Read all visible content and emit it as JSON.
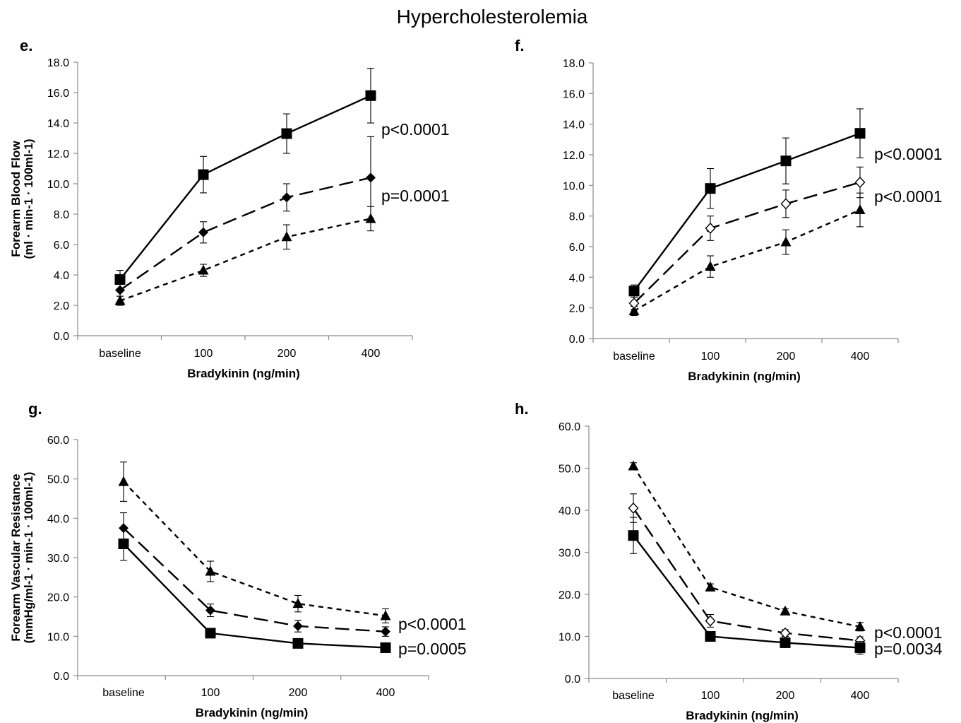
{
  "figure_title": "Hypercholesterolemia",
  "chart_data": [
    {
      "panel": "e.",
      "type": "line",
      "xlabel": "Bradykinin (ng/min)",
      "ylabel_lines": [
        "Forearm Blood Flow",
        "(ml · min-1 · 100ml-1)"
      ],
      "categories": [
        "baseline",
        "100",
        "200",
        "400"
      ],
      "ylim": [
        0,
        18
      ],
      "yticks": [
        "0.0",
        "2.0",
        "4.0",
        "6.0",
        "8.0",
        "10.0",
        "12.0",
        "14.0",
        "16.0",
        "18.0"
      ],
      "series": [
        {
          "marker": "square",
          "dash": "solid",
          "values": [
            3.7,
            10.6,
            13.3,
            15.8
          ],
          "err": [
            0.6,
            1.2,
            1.3,
            1.8
          ]
        },
        {
          "marker": "diamond",
          "dash": "long",
          "values": [
            3.0,
            6.8,
            9.1,
            10.4
          ],
          "err": [
            0.4,
            0.7,
            0.9,
            2.7
          ]
        },
        {
          "marker": "triangle",
          "dash": "short",
          "values": [
            2.3,
            4.3,
            6.5,
            7.7
          ],
          "err": [
            0.3,
            0.4,
            0.8,
            0.8
          ]
        }
      ],
      "annotations": [
        {
          "text": "p<0.0001",
          "series": 0
        },
        {
          "text": "p=0.0001",
          "series": 1
        }
      ]
    },
    {
      "panel": "f.",
      "type": "line",
      "xlabel": "Bradykinin (ng/min)",
      "ylabel_lines": [],
      "categories": [
        "baseline",
        "100",
        "200",
        "400"
      ],
      "ylim": [
        0,
        18
      ],
      "yticks": [
        "0.0",
        "2.0",
        "4.0",
        "6.0",
        "8.0",
        "10.0",
        "12.0",
        "14.0",
        "16.0",
        "18.0"
      ],
      "series": [
        {
          "marker": "square",
          "dash": "solid",
          "values": [
            3.1,
            9.8,
            11.6,
            13.4
          ],
          "err": [
            0.4,
            1.3,
            1.5,
            1.6
          ]
        },
        {
          "marker": "open-diamond",
          "dash": "long",
          "values": [
            2.3,
            7.2,
            8.8,
            10.2
          ],
          "err": [
            0.4,
            0.8,
            0.9,
            1.0
          ]
        },
        {
          "marker": "triangle",
          "dash": "short",
          "values": [
            1.8,
            4.7,
            6.3,
            8.4
          ],
          "err": [
            0.3,
            0.7,
            0.8,
            1.1
          ]
        }
      ],
      "annotations": [
        {
          "text": "p<0.0001",
          "series": 0
        },
        {
          "text": "p<0.0001",
          "series": 1
        }
      ]
    },
    {
      "panel": "g.",
      "type": "line",
      "xlabel": "Bradykinin (ng/min)",
      "ylabel_lines": [
        "Forearm Vascular Resistance",
        "(mmHg/ml-1 · min-1 · 100ml-1)"
      ],
      "categories": [
        "baseline",
        "100",
        "200",
        "400"
      ],
      "ylim": [
        0,
        60
      ],
      "yticks": [
        "0.0",
        "10.0",
        "20.0",
        "30.0",
        "40.0",
        "50.0",
        "60.0"
      ],
      "series": [
        {
          "marker": "square",
          "dash": "solid",
          "values": [
            33.5,
            10.8,
            8.2,
            7.1
          ],
          "err": [
            4.2,
            0.9,
            0.7,
            0.6
          ]
        },
        {
          "marker": "diamond",
          "dash": "long",
          "values": [
            37.5,
            16.6,
            12.6,
            11.2
          ],
          "err": [
            3.9,
            1.6,
            1.5,
            1.2
          ]
        },
        {
          "marker": "triangle",
          "dash": "short",
          "values": [
            49.3,
            26.5,
            18.3,
            15.2
          ],
          "err": [
            5.0,
            2.6,
            2.1,
            1.8
          ]
        }
      ],
      "annotations": [
        {
          "text": "p<0.0001",
          "series": 1
        },
        {
          "text": "p=0.0005",
          "series": 0
        }
      ]
    },
    {
      "panel": "h.",
      "type": "line",
      "xlabel": "Bradykinin (ng/min)",
      "ylabel_lines": [],
      "categories": [
        "baseline",
        "100",
        "200",
        "400"
      ],
      "ylim": [
        0,
        60
      ],
      "yticks": [
        "0.0",
        "10.0",
        "20.0",
        "30.0",
        "40.0",
        "50.0",
        "60.0"
      ],
      "series": [
        {
          "marker": "square",
          "dash": "solid",
          "values": [
            34.0,
            10.0,
            8.5,
            7.3
          ],
          "err": [
            4.3,
            0.6,
            0.6,
            1.5
          ]
        },
        {
          "marker": "open-diamond",
          "dash": "long",
          "values": [
            40.5,
            13.7,
            10.8,
            9.0
          ],
          "err": [
            3.4,
            1.5,
            0.8,
            0.9
          ]
        },
        {
          "marker": "triangle",
          "dash": "short",
          "values": [
            50.5,
            21.7,
            16.0,
            12.3
          ],
          "err": [
            0.8,
            0.8,
            0.6,
            1.0
          ]
        }
      ],
      "annotations": [
        {
          "text": "p<0.0001",
          "series": 2
        },
        {
          "text": "p=0.0034",
          "series": 0
        }
      ]
    }
  ]
}
